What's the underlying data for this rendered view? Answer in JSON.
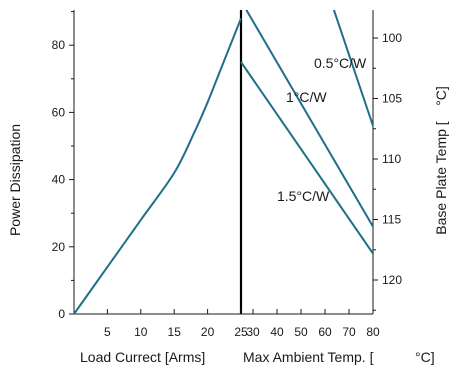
{
  "chart_data": {
    "type": "line",
    "ylabel_left": "Power Dissipation",
    "ylabel_right": "Base Plate Temp [",
    "ylabel_right_unit": "°C]",
    "xlabel_left": "Load Currect [Arms]",
    "xlabel_right": "Max Ambient Temp. [",
    "xlabel_right_unit": "°C]",
    "left_panel": {
      "xlim": [
        0,
        25
      ],
      "ylim": [
        0,
        92
      ],
      "x_ticks": [
        "5",
        "10",
        "15",
        "20",
        "25"
      ],
      "y_ticks": [
        "0",
        "20",
        "40",
        "60",
        "80"
      ],
      "series": [
        {
          "x": [
            0,
            5,
            10,
            15,
            18,
            20,
            22,
            25
          ],
          "y": [
            0,
            14,
            28,
            42,
            54,
            63,
            73,
            88
          ]
        }
      ]
    },
    "right_panel": {
      "xlim": [
        25,
        80
      ],
      "x_ticks": [
        "30",
        "40",
        "50",
        "60",
        "70",
        "80"
      ],
      "y_ticks": [
        "100",
        "105",
        "110",
        "115",
        "120"
      ],
      "series": [
        {
          "name": "0.5°C/W",
          "x": [
            63,
            80
          ],
          "y": [
            92,
            56
          ]
        },
        {
          "name": "1°C/W",
          "x": [
            26,
            80
          ],
          "y": [
            92,
            26
          ]
        },
        {
          "name": "1.5°C/W",
          "x": [
            25,
            80
          ],
          "y": [
            75,
            18
          ]
        }
      ]
    }
  }
}
